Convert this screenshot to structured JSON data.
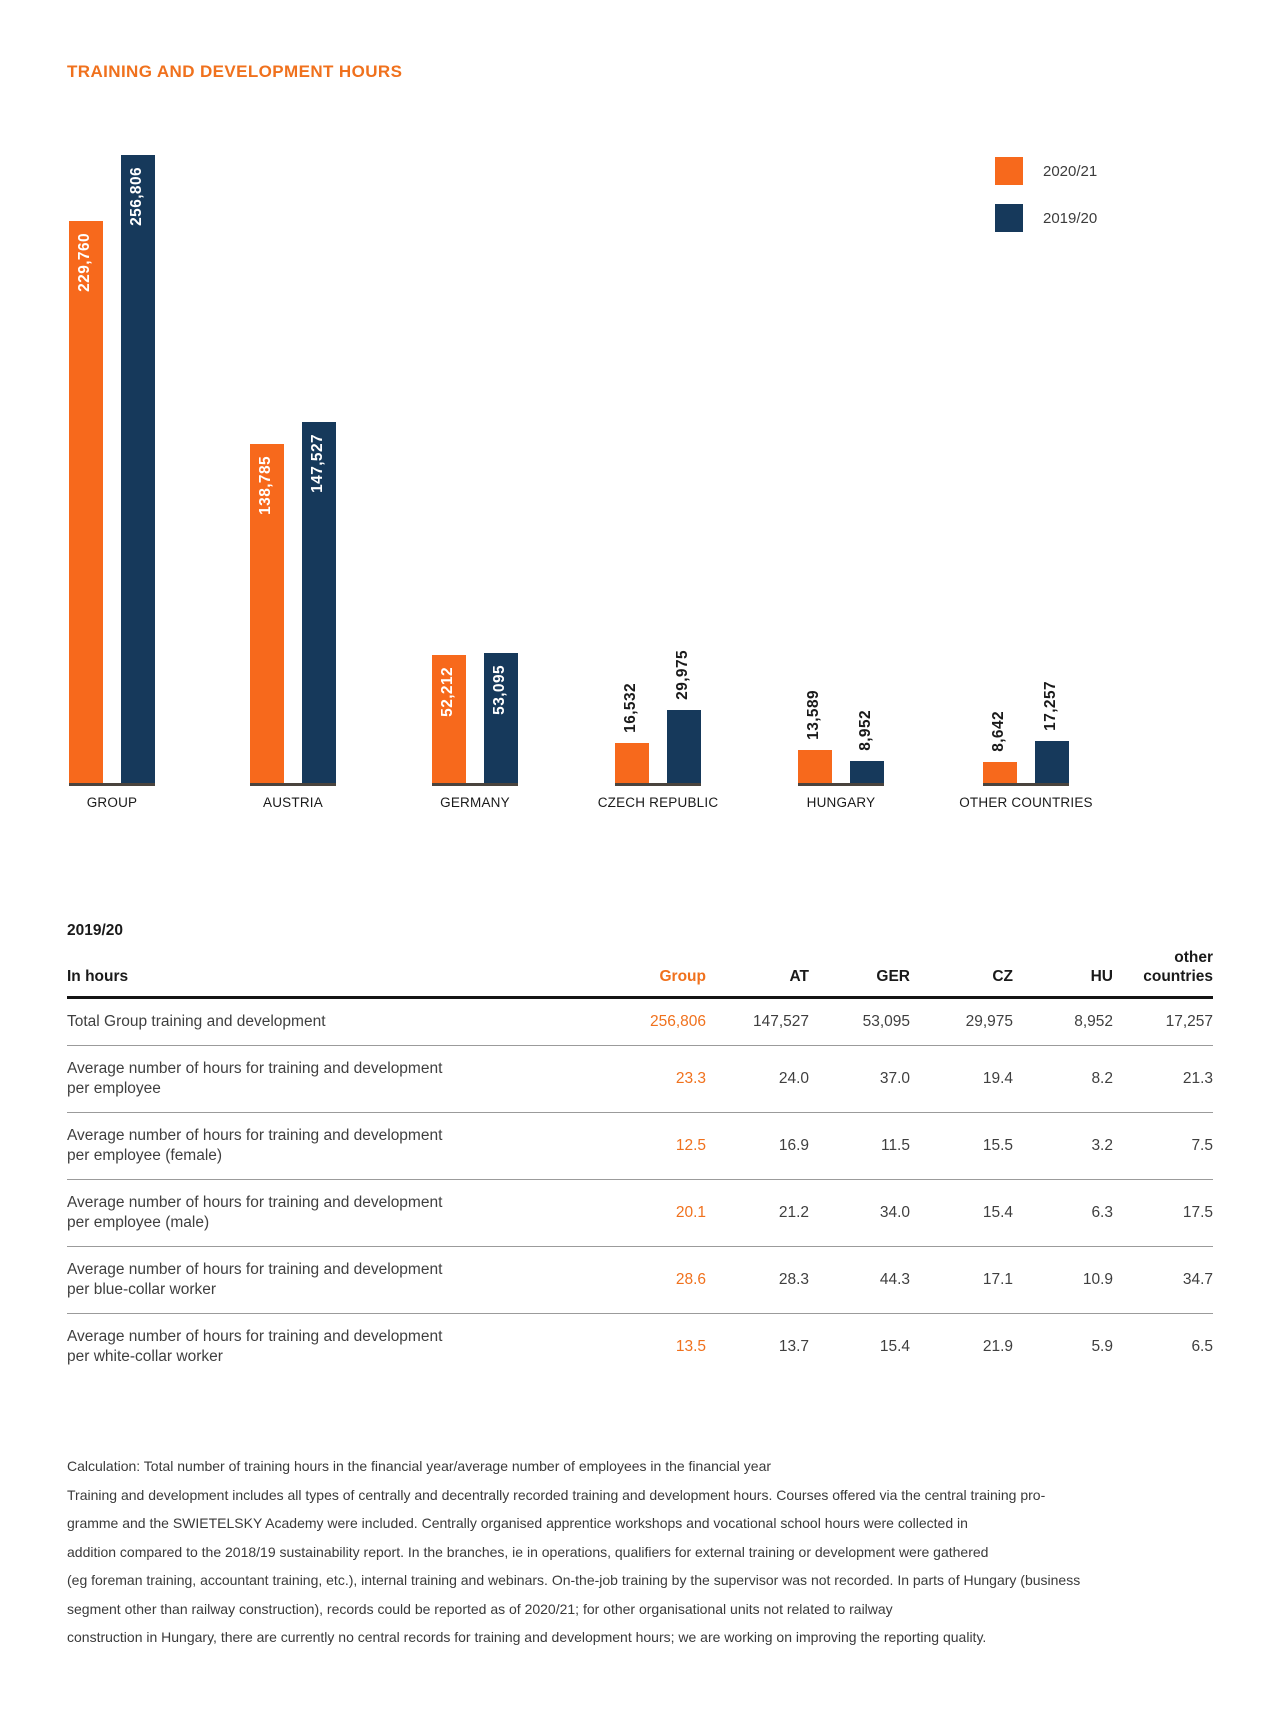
{
  "page": {
    "title": "TRAINING AND DEVELOPMENT HOURS"
  },
  "colors": {
    "orange": "#F0711D",
    "bar_orange": "#F7691C",
    "navy": "#16395B",
    "baseline": "#4A443E"
  },
  "legend": {
    "items": [
      {
        "label": "2020/21",
        "color": "#F7691C"
      },
      {
        "label": "2019/20",
        "color": "#16395B"
      }
    ]
  },
  "chart_data": {
    "type": "bar",
    "title": "TRAINING AND DEVELOPMENT HOURS",
    "categories": [
      "GROUP",
      "AUSTRIA",
      "GERMANY",
      "CZECH REPUBLIC",
      "HUNGARY",
      "OTHER COUNTRIES"
    ],
    "series": [
      {
        "name": "2020/21",
        "color": "#F7691C",
        "values": [
          229760,
          138785,
          52212,
          16532,
          13589,
          8642
        ],
        "labels": [
          "229,760",
          "138,785",
          "52,212",
          "16,532",
          "13,589",
          "8,642"
        ]
      },
      {
        "name": "2019/20",
        "color": "#16395B",
        "values": [
          256806,
          147527,
          53095,
          29975,
          8952,
          17257
        ],
        "labels": [
          "256,806",
          "147,527",
          "53,095",
          "29,975",
          "8,952",
          "17,257"
        ]
      }
    ],
    "xlabel": "",
    "ylabel": "",
    "ylim": [
      0,
      256806
    ],
    "grid": false,
    "legend_position": "top-right",
    "value_labels": "rotated-90-at-bar-top"
  },
  "table": {
    "title": "2019/20",
    "header": {
      "label": "In hours",
      "columns": [
        "Group",
        "AT",
        "GER",
        "CZ",
        "HU",
        "other\ncountries"
      ]
    },
    "rows": [
      {
        "label": "Total Group training and development",
        "values": [
          "256,806",
          "147,527",
          "53,095",
          "29,975",
          "8,952",
          "17,257"
        ]
      },
      {
        "label": "Average number of hours for training and development\nper employee",
        "values": [
          "23.3",
          "24.0",
          "37.0",
          "19.4",
          "8.2",
          "21.3"
        ]
      },
      {
        "label": "Average number of hours for training and development\nper employee (female)",
        "values": [
          "12.5",
          "16.9",
          "11.5",
          "15.5",
          "3.2",
          "7.5"
        ]
      },
      {
        "label": "Average number of hours for training and development\nper employee (male)",
        "values": [
          "20.1",
          "21.2",
          "34.0",
          "15.4",
          "6.3",
          "17.5"
        ]
      },
      {
        "label": "Average number of hours for training and development\nper blue-collar worker",
        "values": [
          "28.6",
          "28.3",
          "44.3",
          "17.1",
          "10.9",
          "34.7"
        ]
      },
      {
        "label": "Average number of hours for training and development\nper white-collar worker",
        "values": [
          "13.5",
          "13.7",
          "15.4",
          "21.9",
          "5.9",
          "6.5"
        ]
      }
    ]
  },
  "footnote": {
    "lines": [
      "Calculation: Total number of training hours in the financial year/average number of employees in the financial year",
      "Training and development includes all types of centrally and decentrally recorded training and development hours. Courses offered via the central training pro-",
      "gramme and the SWIETELSKY Academy were included. Centrally organised apprentice workshops and vocational school hours were collected in",
      "addition compared to the 2018/19 sustainability report. In the branches, ie in operations, qualifiers for external training or development were gathered",
      "(eg foreman training, accountant training, etc.), internal training and webinars. On-the-job training by the supervisor was not recorded. In parts of Hungary (business",
      "segment other than railway construction), records could be reported as of 2020/21; for other organisational units not related to railway",
      "construction in Hungary, there are currently no central records for training and development hours; we are working on improving the reporting quality."
    ]
  }
}
